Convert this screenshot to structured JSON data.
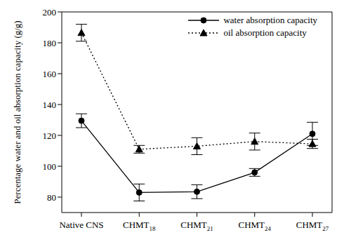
{
  "chart_data": {
    "type": "line",
    "categories": [
      "Native CNS",
      "CHMT18",
      "CHMT21",
      "CHMT24",
      "CHMT27"
    ],
    "ylabel": "Percentage water and oil absorption capacity (g/g)",
    "ylim": [
      70,
      200
    ],
    "yticks": [
      80,
      100,
      120,
      140,
      160,
      180,
      200
    ],
    "grid": false,
    "legend": "upper right",
    "series": [
      {
        "name": "water absorption capacity",
        "color": "#000000",
        "marker": "circle",
        "line_style": "solid",
        "values": [
          129.5,
          83,
          83.5,
          96,
          121
        ],
        "errors": [
          4.5,
          5.5,
          4.5,
          2.5,
          7.5
        ]
      },
      {
        "name": "oil absorption capacity",
        "color": "#000000",
        "marker": "triangle",
        "line_style": "dotted",
        "values": [
          186.5,
          111,
          113,
          116,
          114.5
        ],
        "errors": [
          5.5,
          2.5,
          5.5,
          5.5,
          3
        ]
      }
    ]
  }
}
